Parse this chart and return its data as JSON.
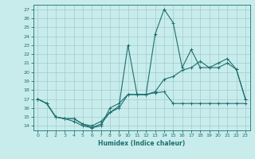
{
  "title": "",
  "xlabel": "Humidex (Indice chaleur)",
  "ylabel": "",
  "background_color": "#c8ecec",
  "grid_color": "#a0cccc",
  "line_color": "#1e6e6e",
  "xlim": [
    -0.5,
    23.5
  ],
  "ylim": [
    13.5,
    27.5
  ],
  "xticks": [
    0,
    1,
    2,
    3,
    4,
    5,
    6,
    7,
    8,
    9,
    10,
    11,
    12,
    13,
    14,
    15,
    16,
    17,
    18,
    19,
    20,
    21,
    22,
    23
  ],
  "yticks": [
    14,
    15,
    16,
    17,
    18,
    19,
    20,
    21,
    22,
    23,
    24,
    25,
    26,
    27
  ],
  "series1_x": [
    0,
    1,
    2,
    3,
    4,
    5,
    6,
    7,
    8,
    9,
    10,
    11,
    12,
    13,
    14,
    15,
    16,
    17,
    18,
    19,
    20,
    21,
    22,
    23
  ],
  "series1_y": [
    17.0,
    16.5,
    15.0,
    14.8,
    14.8,
    14.2,
    13.8,
    14.2,
    15.5,
    16.2,
    23.0,
    17.5,
    17.5,
    24.2,
    27.0,
    25.5,
    20.5,
    22.5,
    20.5,
    20.5,
    21.0,
    21.5,
    20.3,
    17.0
  ],
  "series2_x": [
    0,
    1,
    2,
    3,
    4,
    5,
    6,
    7,
    8,
    9,
    10,
    11,
    12,
    13,
    14,
    15,
    16,
    17,
    18,
    19,
    20,
    21,
    22,
    23
  ],
  "series2_y": [
    17.0,
    16.5,
    15.0,
    14.8,
    14.8,
    14.2,
    14.0,
    14.5,
    15.5,
    16.0,
    17.5,
    17.5,
    17.5,
    17.8,
    19.2,
    19.5,
    20.2,
    20.5,
    21.2,
    20.5,
    20.5,
    21.0,
    20.3,
    17.0
  ],
  "series3_x": [
    0,
    1,
    2,
    3,
    4,
    5,
    6,
    7,
    8,
    9,
    10,
    11,
    12,
    13,
    14,
    15,
    16,
    17,
    18,
    19,
    20,
    21,
    22,
    23
  ],
  "series3_y": [
    17.0,
    16.5,
    15.0,
    14.8,
    14.5,
    14.0,
    13.8,
    14.0,
    16.0,
    16.5,
    17.5,
    17.5,
    17.5,
    17.7,
    17.8,
    16.5,
    16.5,
    16.5,
    16.5,
    16.5,
    16.5,
    16.5,
    16.5,
    16.5
  ]
}
